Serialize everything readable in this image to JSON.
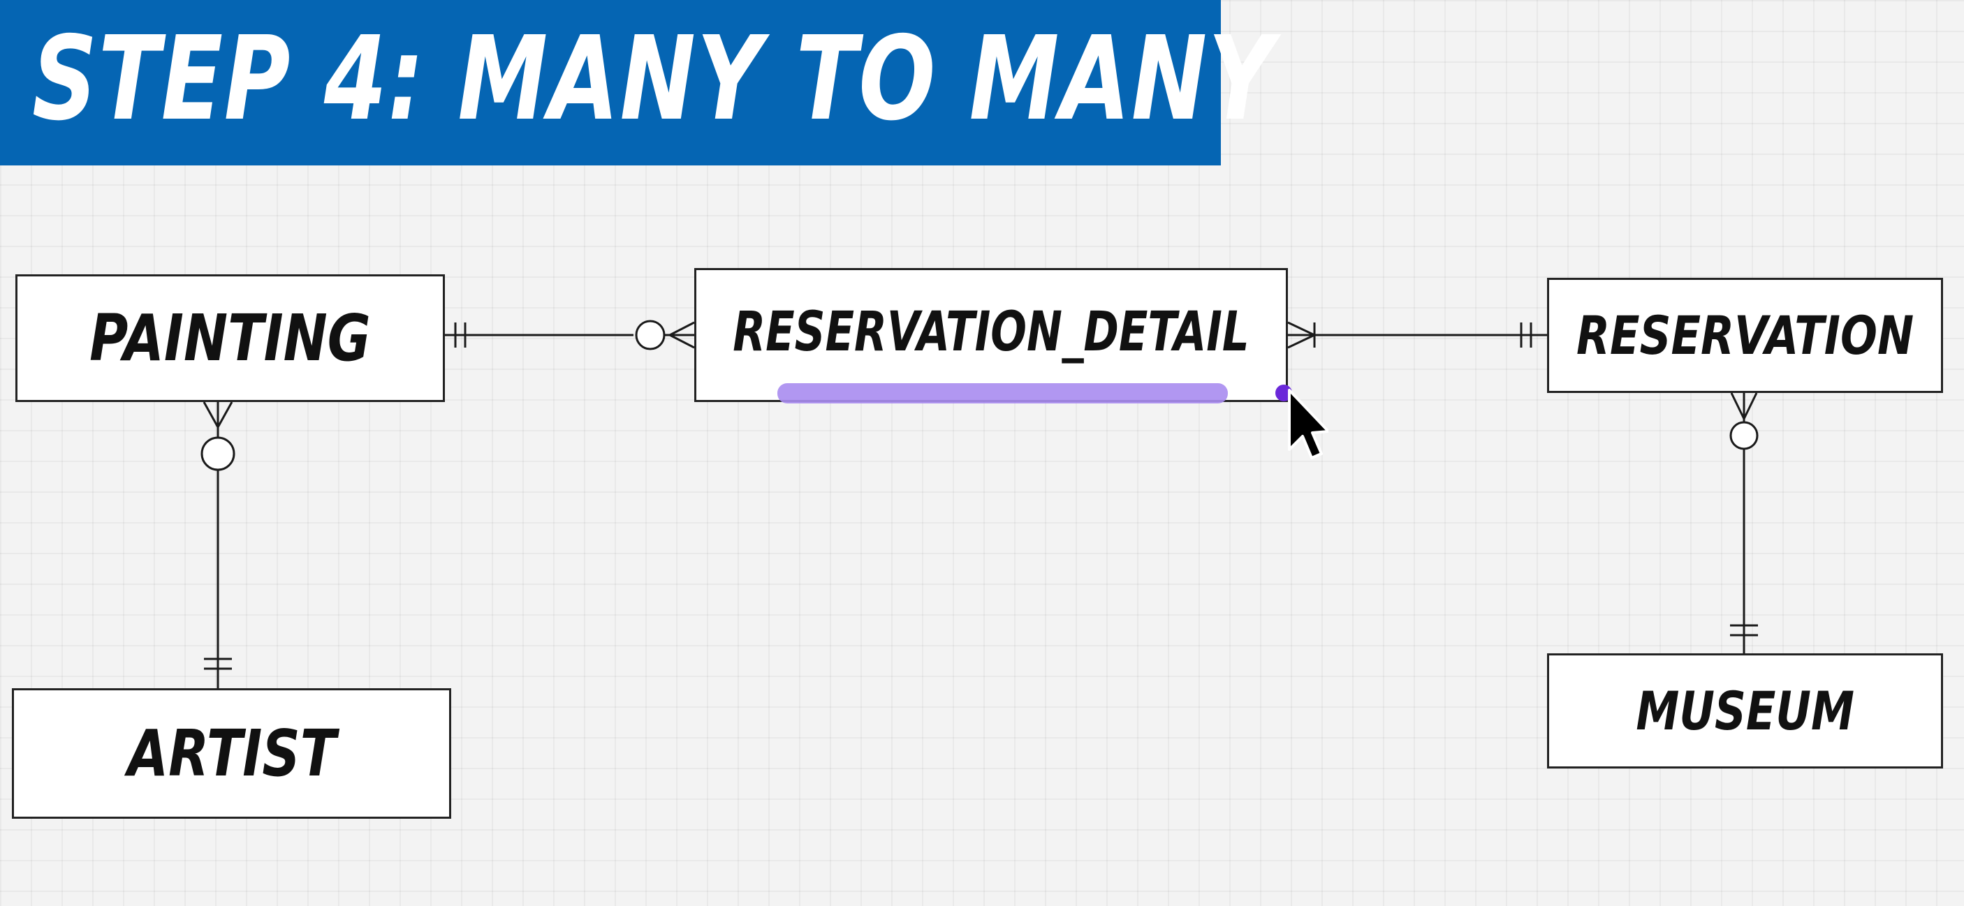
{
  "banner": {
    "title": "STEP 4: MANY TO MANY",
    "color": "#0565b3"
  },
  "entities": {
    "painting": "PAINTING",
    "reservation_detail": "RESERVATION_DETAIL",
    "reservation": "RESERVATION",
    "artist": "ARTIST",
    "museum": "MUSEUM"
  },
  "relationships": [
    {
      "from": "PAINTING",
      "from_end": "one-and-only-one",
      "to": "RESERVATION_DETAIL",
      "to_end": "zero-or-many"
    },
    {
      "from": "RESERVATION",
      "from_end": "one-and-only-one",
      "to": "RESERVATION_DETAIL",
      "to_end": "one-or-many"
    },
    {
      "from": "ARTIST",
      "from_end": "one-and-only-one",
      "to": "PAINTING",
      "to_end": "zero-or-many"
    },
    {
      "from": "MUSEUM",
      "from_end": "one-and-only-one",
      "to": "RESERVATION",
      "to_end": "zero-or-many"
    }
  ],
  "selection_highlight_color": "#a98cf0",
  "icons": {
    "cursor": "mouse-pointer-icon",
    "resize_handle": "resize-handle-icon"
  }
}
